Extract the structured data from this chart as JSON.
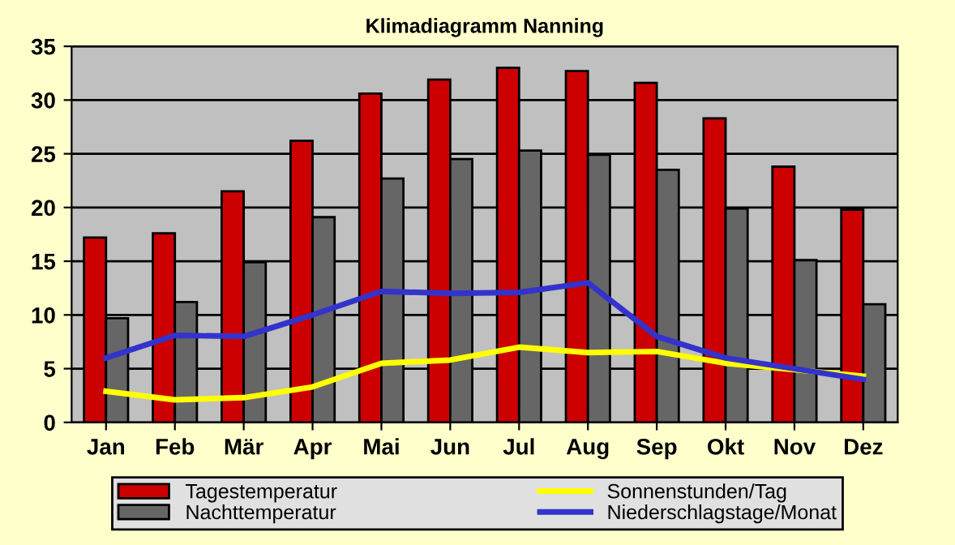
{
  "chart_data": {
    "type": "bar",
    "title": "Klimadiagramm Nanning",
    "categories": [
      "Jan",
      "Feb",
      "Mär",
      "Apr",
      "Mai",
      "Jun",
      "Jul",
      "Aug",
      "Sep",
      "Okt",
      "Nov",
      "Dez"
    ],
    "series": [
      {
        "name": "Tagestemperatur",
        "color": "#cc0000",
        "values": [
          17.2,
          17.6,
          21.5,
          26.2,
          30.6,
          31.9,
          33.0,
          32.7,
          31.6,
          28.3,
          23.8,
          19.8
        ]
      },
      {
        "name": "Nachttemperatur",
        "color": "#666666",
        "values": [
          9.7,
          11.2,
          14.9,
          19.1,
          22.7,
          24.5,
          25.3,
          24.9,
          23.5,
          19.9,
          15.1,
          11.0
        ]
      },
      {
        "name": "Sonnenstunden/Tag",
        "type": "line",
        "color": "#ffff00",
        "values": [
          2.9,
          2.1,
          2.3,
          3.3,
          5.5,
          5.8,
          7.0,
          6.5,
          6.6,
          5.5,
          4.9,
          4.3
        ]
      },
      {
        "name": "Niederschlagstage/Monat",
        "type": "line",
        "color": "#3333cc",
        "values": [
          6.0,
          8.1,
          8.0,
          10.0,
          12.2,
          12.0,
          12.1,
          13.0,
          8.0,
          6.0,
          5.0,
          4.0
        ]
      }
    ],
    "ylim": [
      0,
      35
    ],
    "yticks": [
      0,
      5,
      10,
      15,
      20,
      25,
      30,
      35
    ],
    "grid": "y",
    "legend": "bottom"
  }
}
